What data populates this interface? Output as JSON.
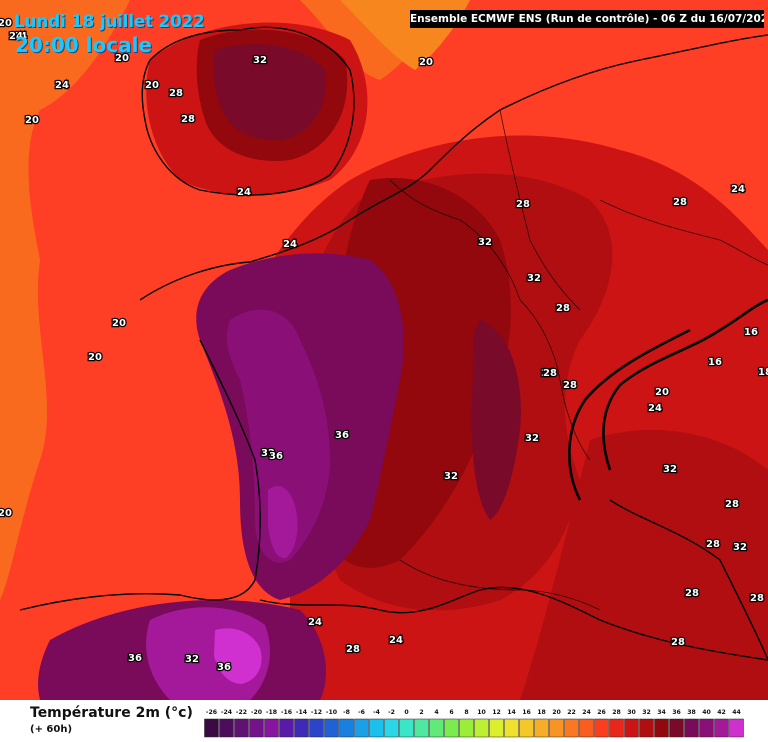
{
  "header": {
    "date": "Lundi 18 juillet 2022",
    "time": "20:00 locale",
    "run": "Ensemble ECMWF ENS (Run de contrôle) - 06 Z du 16/07/2022"
  },
  "legend": {
    "title": "Température 2m (°c)",
    "subtitle": "(+ 60h)",
    "ticks": [
      "-26",
      "-24",
      "-22",
      "-20",
      "-18",
      "-16",
      "-14",
      "-12",
      "-10",
      "-8",
      "-6",
      "-4",
      "-2",
      "0",
      "2",
      "4",
      "6",
      "8",
      "10",
      "12",
      "14",
      "16",
      "18",
      "20",
      "22",
      "24",
      "26",
      "28",
      "30",
      "32",
      "34",
      "36",
      "38",
      "40",
      "42",
      "44"
    ],
    "colors": [
      "#3b0a45",
      "#4e0d5c",
      "#611073",
      "#74128a",
      "#8715a1",
      "#5a1aa8",
      "#3f2ab8",
      "#2b45c8",
      "#1f62d6",
      "#1a80e0",
      "#1aa0e8",
      "#1ac0ee",
      "#28d8e8",
      "#3ae6c8",
      "#4ee8a0",
      "#62ea78",
      "#7aec50",
      "#9aee38",
      "#bcf030",
      "#dcef2c",
      "#f0e22a",
      "#f5c828",
      "#f7ae26",
      "#f89424",
      "#fa7822",
      "#fb5c20",
      "#fc3e1e",
      "#e8261a",
      "#cc1414",
      "#b00e10",
      "#92080c",
      "#7a0a2a",
      "#7a0a5a",
      "#8a1078",
      "#a4189a",
      "#d030d0"
    ]
  },
  "map": {
    "background_color": "#ff3e26",
    "labels": [
      {
        "text": "32"
      },
      {
        "text": "28"
      },
      {
        "text": "28"
      },
      {
        "text": "24"
      },
      {
        "text": "24"
      },
      {
        "text": "20"
      },
      {
        "text": "20"
      },
      {
        "text": "24"
      },
      {
        "text": "20"
      },
      {
        "text": "20"
      },
      {
        "text": "20"
      },
      {
        "text": "20"
      },
      {
        "text": "20"
      },
      {
        "text": "24"
      },
      {
        "text": "28"
      },
      {
        "text": "32"
      },
      {
        "text": "32"
      },
      {
        "text": "28"
      },
      {
        "text": "28"
      },
      {
        "text": "24"
      },
      {
        "text": "28"
      },
      {
        "text": "16"
      },
      {
        "text": "16"
      },
      {
        "text": "18"
      },
      {
        "text": "20"
      },
      {
        "text": "24"
      },
      {
        "text": "28"
      },
      {
        "text": "28"
      },
      {
        "text": "32"
      },
      {
        "text": "32"
      },
      {
        "text": "36"
      },
      {
        "text": "32"
      },
      {
        "text": "36"
      },
      {
        "text": "32"
      },
      {
        "text": "28"
      },
      {
        "text": "28"
      },
      {
        "text": "32"
      },
      {
        "text": "28"
      },
      {
        "text": "28"
      },
      {
        "text": "28"
      },
      {
        "text": "24"
      },
      {
        "text": "24"
      },
      {
        "text": "28"
      },
      {
        "text": "36"
      },
      {
        "text": "32"
      },
      {
        "text": "36"
      },
      {
        "text": "20"
      },
      {
        "text": "24"
      }
    ]
  }
}
